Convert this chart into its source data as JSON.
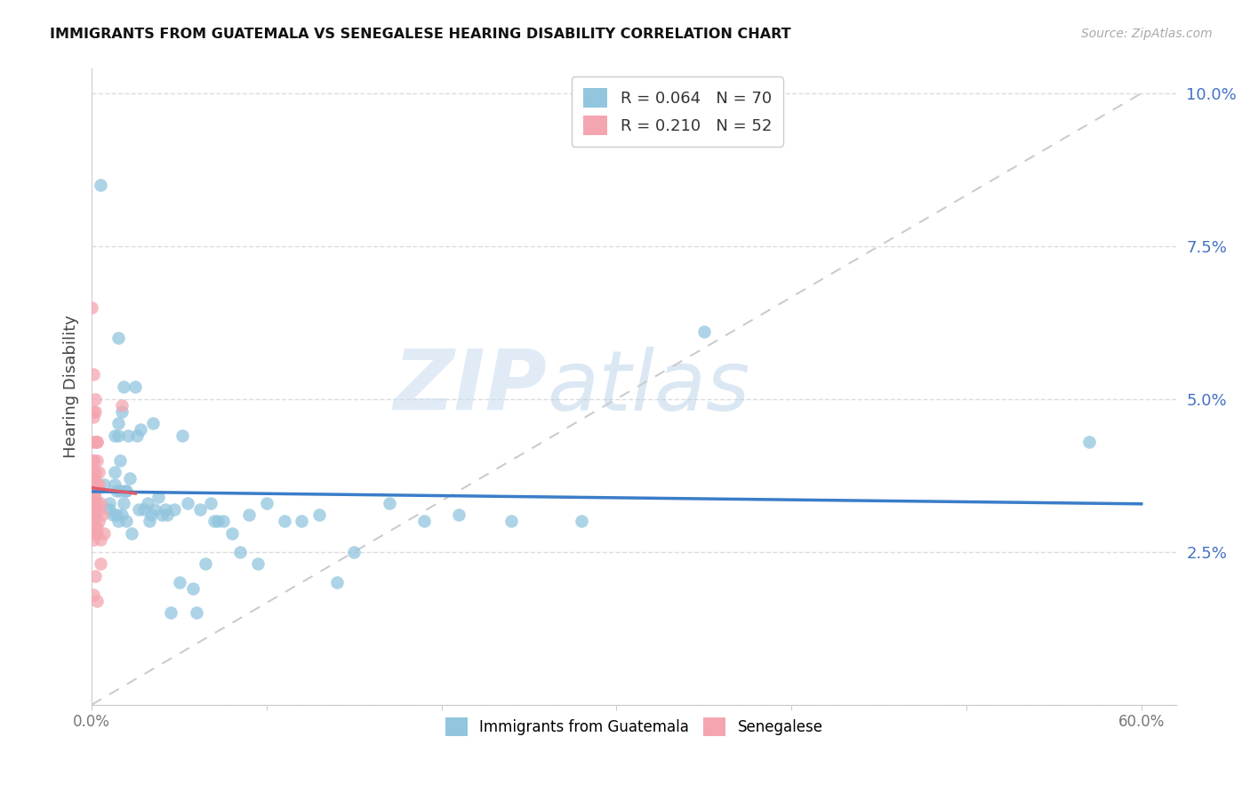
{
  "title": "IMMIGRANTS FROM GUATEMALA VS SENEGALESE HEARING DISABILITY CORRELATION CHART",
  "source": "Source: ZipAtlas.com",
  "ylabel": "Hearing Disability",
  "yticks": [
    0.0,
    0.025,
    0.05,
    0.075,
    0.1
  ],
  "ytick_labels": [
    "",
    "2.5%",
    "5.0%",
    "7.5%",
    "10.0%"
  ],
  "xticks": [
    0.0,
    0.1,
    0.2,
    0.3,
    0.4,
    0.5,
    0.6
  ],
  "xtick_labels": [
    "0.0%",
    "",
    "",
    "",
    "",
    "",
    "60.0%"
  ],
  "xlim": [
    0.0,
    0.62
  ],
  "ylim": [
    0.0,
    0.104
  ],
  "watermark_zip": "ZIP",
  "watermark_atlas": "atlas",
  "legend_blue_r": "R = 0.064",
  "legend_blue_n": "N = 70",
  "legend_pink_r": "R = 0.210",
  "legend_pink_n": "N = 52",
  "blue_color": "#92C5DE",
  "pink_color": "#F4A6B0",
  "line_blue_color": "#3A7DC9",
  "line_pink_color": "#E05A6A",
  "diag_color": "#cccccc",
  "tick_color": "#4472C4",
  "guatemala_x": [
    0.005,
    0.007,
    0.01,
    0.01,
    0.012,
    0.013,
    0.013,
    0.013,
    0.014,
    0.014,
    0.015,
    0.015,
    0.015,
    0.015,
    0.016,
    0.016,
    0.017,
    0.017,
    0.018,
    0.018,
    0.019,
    0.02,
    0.02,
    0.021,
    0.022,
    0.023,
    0.025,
    0.026,
    0.027,
    0.028,
    0.03,
    0.032,
    0.033,
    0.034,
    0.035,
    0.036,
    0.038,
    0.04,
    0.042,
    0.043,
    0.045,
    0.047,
    0.05,
    0.052,
    0.055,
    0.058,
    0.06,
    0.062,
    0.065,
    0.068,
    0.07,
    0.072,
    0.075,
    0.08,
    0.085,
    0.09,
    0.095,
    0.1,
    0.11,
    0.12,
    0.13,
    0.14,
    0.15,
    0.17,
    0.19,
    0.21,
    0.24,
    0.28,
    0.35,
    0.57
  ],
  "guatemala_y": [
    0.085,
    0.036,
    0.033,
    0.032,
    0.031,
    0.044,
    0.038,
    0.036,
    0.035,
    0.031,
    0.03,
    0.06,
    0.046,
    0.044,
    0.04,
    0.035,
    0.031,
    0.048,
    0.033,
    0.052,
    0.035,
    0.035,
    0.03,
    0.044,
    0.037,
    0.028,
    0.052,
    0.044,
    0.032,
    0.045,
    0.032,
    0.033,
    0.03,
    0.031,
    0.046,
    0.032,
    0.034,
    0.031,
    0.032,
    0.031,
    0.015,
    0.032,
    0.02,
    0.044,
    0.033,
    0.019,
    0.015,
    0.032,
    0.023,
    0.033,
    0.03,
    0.03,
    0.03,
    0.028,
    0.025,
    0.031,
    0.023,
    0.033,
    0.03,
    0.03,
    0.031,
    0.02,
    0.025,
    0.033,
    0.03,
    0.031,
    0.03,
    0.03,
    0.061,
    0.043
  ],
  "senegalese_x": [
    0.0,
    0.0,
    0.001,
    0.001,
    0.001,
    0.001,
    0.001,
    0.001,
    0.001,
    0.001,
    0.001,
    0.001,
    0.001,
    0.001,
    0.001,
    0.001,
    0.001,
    0.001,
    0.001,
    0.002,
    0.002,
    0.002,
    0.002,
    0.002,
    0.002,
    0.002,
    0.002,
    0.002,
    0.002,
    0.002,
    0.002,
    0.002,
    0.002,
    0.003,
    0.003,
    0.003,
    0.003,
    0.003,
    0.003,
    0.003,
    0.003,
    0.003,
    0.004,
    0.004,
    0.004,
    0.004,
    0.005,
    0.005,
    0.005,
    0.006,
    0.007,
    0.017
  ],
  "senegalese_y": [
    0.033,
    0.065,
    0.054,
    0.048,
    0.04,
    0.037,
    0.035,
    0.034,
    0.033,
    0.032,
    0.031,
    0.03,
    0.028,
    0.027,
    0.018,
    0.047,
    0.043,
    0.04,
    0.038,
    0.05,
    0.037,
    0.035,
    0.033,
    0.031,
    0.029,
    0.028,
    0.021,
    0.048,
    0.043,
    0.038,
    0.036,
    0.034,
    0.032,
    0.028,
    0.017,
    0.043,
    0.036,
    0.033,
    0.029,
    0.043,
    0.04,
    0.036,
    0.032,
    0.036,
    0.038,
    0.03,
    0.033,
    0.023,
    0.027,
    0.031,
    0.028,
    0.049
  ]
}
